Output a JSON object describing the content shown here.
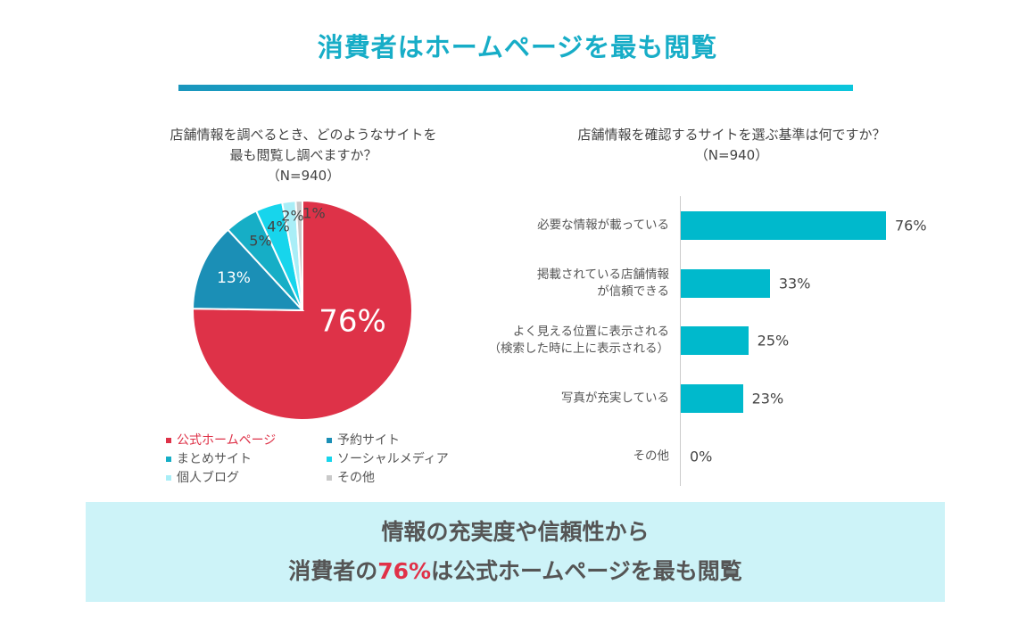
{
  "title": "消費者はホームページを最も閲覧",
  "chart_data": [
    {
      "type": "pie",
      "title_lines": [
        "店舗情報を調べるとき、どのようなサイトを",
        "最も閲覧し調べますか？",
        "（N=940）"
      ],
      "categories": [
        "公式ホームページ",
        "予約サイト",
        "まとめサイト",
        "ソーシャルメディア",
        "個人ブログ",
        "その他"
      ],
      "values": [
        76,
        13,
        5,
        4,
        2,
        1
      ],
      "labels": [
        "76%",
        "13%",
        "5%",
        "4%",
        "2%",
        "1%"
      ],
      "colors": [
        "#de3248",
        "#1b8fb6",
        "#16aec6",
        "#17d5ec",
        "#a9eef7",
        "#c9c9c9"
      ],
      "legend_placement": "bottom",
      "start": "top",
      "direction": "clockwise"
    },
    {
      "type": "bar",
      "orientation": "horizontal",
      "title_lines": [
        "店舗情報を確認するサイトを選ぶ基準は何ですか？",
        "（N=940）"
      ],
      "categories": [
        [
          "必要な情報が載っている"
        ],
        [
          "掲載されている店舗情報",
          "が信頼できる"
        ],
        [
          "よく見える位置に表示される",
          "（検索した時に上に表示される）"
        ],
        [
          "写真が充実している"
        ],
        [
          "その他"
        ]
      ],
      "values": [
        76,
        33,
        25,
        23,
        0
      ],
      "labels": [
        "76%",
        "33%",
        "25%",
        "23%",
        "0%"
      ],
      "unit": "%",
      "color": "#00b9cc",
      "grid": false
    }
  ],
  "summary": {
    "line1": "情報の充実度や信頼性から",
    "line2_pre": "消費者の",
    "line2_highlight": "76%",
    "line2_post": "は公式ホームページを最も閲覧"
  },
  "colors": {
    "title": "#17adc7",
    "highlight": "#e03148",
    "summary_bg": "#cdf3f8"
  }
}
